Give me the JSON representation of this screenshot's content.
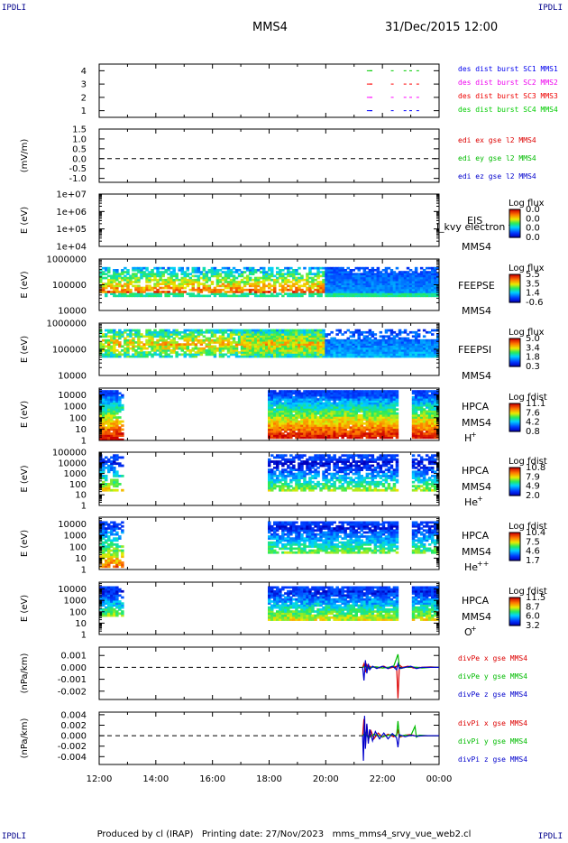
{
  "corners": {
    "tl": "IPDLI",
    "tr": "IPDLI",
    "bl": "IPDLI",
    "br": "IPDLI"
  },
  "header": {
    "spacecraft": "MMS4",
    "datetime": "31/Dec/2015 12:00"
  },
  "footer": "Produced by cl (IRAP)   Printing date: 27/Nov/2023   mms_mms4_srvy_vue_web2.cl",
  "time_axis": {
    "ticks": [
      "12:00",
      "14:00",
      "16:00",
      "18:00",
      "20:00",
      "22:00",
      "00:00"
    ],
    "start_hour": 12,
    "end_hour": 24
  },
  "colors": {
    "axis": "#000000",
    "dist1": "#00cc00",
    "dist2": "#ff0000",
    "dist3": "#ff00ff",
    "dist4": "#0000ff",
    "ex": "#dd0000",
    "ey": "#00bb00",
    "ez": "#0000cc"
  },
  "chart_data": [
    {
      "type": "scatter",
      "id": "dist",
      "ylabel": "",
      "yticks": [
        "1",
        "2",
        "3",
        "4"
      ],
      "ylim": [
        0.5,
        4.5
      ],
      "legend": [
        "des dist burst SC1 MMS1",
        "des dist burst SC2 MMS2",
        "des dist burst SC3 MMS3",
        "des dist burst SC4 MMS4"
      ],
      "legend_colors": [
        "#0000ee",
        "#ee00ee",
        "#ee0000",
        "#00cc00"
      ],
      "series": [
        {
          "y": 4,
          "color": "#00cc00",
          "x": [
            21.45,
            21.55,
            22.3,
            22.75,
            22.95,
            23.2
          ]
        },
        {
          "y": 3,
          "color": "#ff0000",
          "x": [
            21.45,
            21.55,
            22.3,
            22.75,
            22.95,
            23.2
          ]
        },
        {
          "y": 2,
          "color": "#ff00ff",
          "x": [
            21.45,
            21.55,
            22.3,
            22.75,
            22.95,
            23.2
          ]
        },
        {
          "y": 1,
          "color": "#0000ff",
          "x": [
            21.45,
            21.55,
            22.3,
            22.75,
            22.95,
            23.2
          ]
        }
      ]
    },
    {
      "type": "line",
      "id": "edi",
      "ylabel": "(mV/m)",
      "yticks": [
        "1.5",
        "1.0",
        "0.5",
        "0.0",
        "-0.5",
        "-1.0"
      ],
      "ylim": [
        -1.2,
        1.5
      ],
      "legend": [
        "edi ex gse l2 MMS4",
        "edi ey gse l2 MMS4",
        "edi ez gse l2 MMS4"
      ],
      "legend_colors": [
        "#dd0000",
        "#00bb00",
        "#0000cc"
      ]
    },
    {
      "type": "heatmap",
      "id": "eis",
      "ylabel": "E (eV)",
      "yticks": [
        "1e+07",
        "1e+06",
        "1e+05",
        "1e+04"
      ],
      "ylog": true,
      "ylim": [
        10000,
        10000000
      ],
      "instrument": "EIS",
      "sc": "MMS4",
      "overlay": "l_kvy electron to",
      "colorbar": {
        "title": "Log flux",
        "ticks": [
          "0.0",
          "0.0",
          "0.0",
          "0.0"
        ]
      }
    },
    {
      "type": "heatmap",
      "id": "feepse",
      "ylabel": "E (eV)",
      "yticks": [
        "1000000",
        "100000",
        "10000"
      ],
      "ylog": true,
      "ylim": [
        10000,
        1000000
      ],
      "instrument": "FEEPSE",
      "sc": "MMS4",
      "colorbar": {
        "title": "Log flux",
        "ticks": [
          "5.5",
          "3.5",
          "1.4",
          "-0.6"
        ]
      }
    },
    {
      "type": "heatmap",
      "id": "feepsi",
      "ylabel": "E (eV)",
      "yticks": [
        "1000000",
        "100000",
        "10000"
      ],
      "ylog": true,
      "ylim": [
        10000,
        1000000
      ],
      "instrument": "FEEPSI",
      "sc": "MMS4",
      "colorbar": {
        "title": "Log flux",
        "ticks": [
          "5.0",
          "3.4",
          "1.8",
          "0.3"
        ]
      }
    },
    {
      "type": "heatmap",
      "id": "hpca_h",
      "ylabel": "E (eV)",
      "yticks": [
        "10000",
        "1000",
        "100",
        "10",
        "1"
      ],
      "ylog": true,
      "ylim": [
        1,
        40000
      ],
      "instrument": "HPCA",
      "sc": "MMS4",
      "species": "H",
      "charge": "+",
      "colorbar": {
        "title": "Log fdist",
        "ticks": [
          "11.1",
          "7.6",
          "4.2",
          "0.8"
        ]
      }
    },
    {
      "type": "heatmap",
      "id": "hpca_he",
      "ylabel": "E (eV)",
      "yticks": [
        "100000",
        "10000",
        "1000",
        "100",
        "10",
        "1"
      ],
      "ylog": true,
      "ylim": [
        1,
        100000
      ],
      "instrument": "HPCA",
      "sc": "MMS4",
      "species": "He",
      "charge": "+",
      "colorbar": {
        "title": "Log fdist",
        "ticks": [
          "10.8",
          "7.9",
          "4.9",
          "2.0"
        ]
      }
    },
    {
      "type": "heatmap",
      "id": "hpca_he2",
      "ylabel": "E (eV)",
      "yticks": [
        "10000",
        "1000",
        "100",
        "10",
        "1"
      ],
      "ylog": true,
      "ylim": [
        1,
        40000
      ],
      "instrument": "HPCA",
      "sc": "MMS4",
      "species": "He",
      "charge": "++",
      "colorbar": {
        "title": "Log fdist",
        "ticks": [
          "10.4",
          "7.5",
          "4.6",
          "1.7"
        ]
      }
    },
    {
      "type": "heatmap",
      "id": "hpca_o",
      "ylabel": "E (eV)",
      "yticks": [
        "10000",
        "1000",
        "100",
        "10",
        "1"
      ],
      "ylog": true,
      "ylim": [
        1,
        40000
      ],
      "instrument": "HPCA",
      "sc": "MMS4",
      "species": "O",
      "charge": "+",
      "colorbar": {
        "title": "Log fdist",
        "ticks": [
          "11.5",
          "8.7",
          "6.0",
          "3.2"
        ]
      }
    },
    {
      "type": "line",
      "id": "divpe",
      "ylabel": "(nPa/km)",
      "yticks": [
        "0.001",
        "0.000",
        "-0.001",
        "-0.002"
      ],
      "ylim": [
        -0.0027,
        0.0017
      ],
      "legend": [
        "divPe x gse MMS4",
        "divPe y gse MMS4",
        "divPe z gse MMS4"
      ],
      "legend_colors": [
        "#dd0000",
        "#00bb00",
        "#0000cc"
      ],
      "series": [
        {
          "name": "divPe x gse MMS4",
          "color": "#dd0000",
          "x": [
            21.3,
            21.35,
            21.4,
            21.45,
            21.5,
            21.55,
            21.6,
            21.75,
            21.9,
            22.05,
            22.2,
            22.35,
            22.5,
            22.55,
            22.6,
            22.7,
            22.9,
            23.1,
            23.4,
            23.7,
            24.0
          ],
          "y": [
            0.0,
            0.0003,
            -0.0004,
            0.0002,
            -0.0001,
            0.0001,
            0.0,
            5e-05,
            -5e-05,
            0.0001,
            -0.0001,
            0.0,
            0.0001,
            -0.0026,
            0.0002,
            0.0,
            0.0001,
            -5e-05,
            0.0,
            5e-05,
            0.0
          ]
        },
        {
          "name": "divPe y gse MMS4",
          "color": "#00bb00",
          "x": [
            21.3,
            21.4,
            21.5,
            21.6,
            21.8,
            22.0,
            22.2,
            22.4,
            22.55,
            22.6,
            22.65,
            22.8,
            23.0,
            23.2,
            23.4,
            23.7,
            24.0
          ],
          "y": [
            0.0,
            0.0001,
            -0.0001,
            0.0,
            5e-05,
            -5e-05,
            0.0,
            0.0001,
            0.0011,
            0.0,
            -0.0001,
            0.0,
            5e-05,
            0.0,
            -5e-05,
            0.0,
            0.0
          ]
        },
        {
          "name": "divPe z gse MMS4",
          "color": "#0000cc",
          "x": [
            21.3,
            21.35,
            21.4,
            21.45,
            21.5,
            21.55,
            21.65,
            21.8,
            22.0,
            22.2,
            22.35,
            22.5,
            22.55,
            22.6,
            22.8,
            23.0,
            23.2,
            23.4,
            23.7,
            24.0
          ],
          "y": [
            0.0,
            -0.0011,
            0.0006,
            -0.0005,
            0.0003,
            -0.0002,
            0.0001,
            -0.0001,
            0.0001,
            -0.0001,
            0.0001,
            -0.0002,
            0.0003,
            -0.0001,
            0.0,
            0.0001,
            -0.0001,
            0.0,
            0.0,
            0.0
          ]
        }
      ]
    },
    {
      "type": "line",
      "id": "divpi",
      "ylabel": "(nPa/km)",
      "yticks": [
        "0.004",
        "0.002",
        "0.000",
        "-0.002",
        "-0.004"
      ],
      "ylim": [
        -0.0055,
        0.0045
      ],
      "legend": [
        "divPi x gse MMS4",
        "divPi y gse MMS4",
        "divPi z gse MMS4"
      ],
      "legend_colors": [
        "#dd0000",
        "#00bb00",
        "#0000cc"
      ],
      "series": [
        {
          "name": "divPi x gse MMS4",
          "color": "#dd0000",
          "x": [
            21.3,
            21.35,
            21.4,
            21.45,
            21.5,
            21.6,
            21.7,
            21.85,
            22.0,
            22.2,
            22.4,
            22.5,
            22.55,
            22.6,
            22.8,
            23.0,
            23.2,
            23.5,
            24.0
          ],
          "y": [
            0.0,
            0.0032,
            -0.002,
            0.0021,
            -0.001,
            0.0009,
            -0.0006,
            0.0005,
            -0.0003,
            0.0003,
            -0.0002,
            0.0002,
            0.001,
            -0.0003,
            0.0001,
            0.0002,
            -0.0001,
            0.0,
            0.0
          ]
        },
        {
          "name": "divPi y gse MMS4",
          "color": "#00bb00",
          "x": [
            21.3,
            21.4,
            21.5,
            21.7,
            22.0,
            22.3,
            22.5,
            22.55,
            22.6,
            22.8,
            23.0,
            23.15,
            23.2,
            23.3,
            23.6,
            24.0
          ],
          "y": [
            0.0,
            0.0006,
            -0.0005,
            0.0003,
            -0.0002,
            0.0002,
            0.0,
            0.0028,
            -0.0001,
            0.0001,
            0.0,
            0.0018,
            -0.0003,
            0.0001,
            0.0,
            0.0
          ]
        },
        {
          "name": "divPi z gse MMS4",
          "color": "#0000cc",
          "x": [
            21.3,
            21.33,
            21.37,
            21.4,
            21.45,
            21.5,
            21.55,
            21.65,
            21.75,
            21.9,
            22.05,
            22.2,
            22.35,
            22.5,
            22.55,
            22.6,
            22.8,
            23.0,
            23.2,
            23.5,
            24.0
          ],
          "y": [
            0.0,
            -0.0048,
            0.0038,
            -0.0025,
            0.0023,
            -0.0015,
            0.0012,
            -0.001,
            0.0008,
            -0.0006,
            0.0005,
            -0.0006,
            0.0004,
            -0.0004,
            -0.0022,
            0.0002,
            -0.0002,
            0.0001,
            -0.0001,
            0.0,
            0.0
          ]
        }
      ]
    }
  ]
}
